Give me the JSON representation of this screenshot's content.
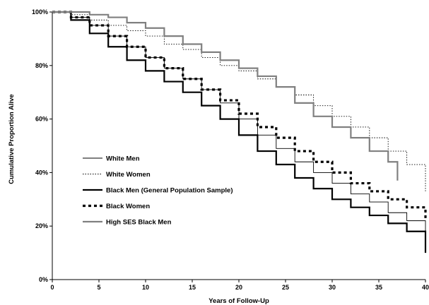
{
  "chart_data": {
    "type": "line",
    "title": "",
    "xlabel": "Years of Follow-Up",
    "ylabel": "Cumulative Proportion Alive",
    "xlim": [
      0,
      40
    ],
    "ylim": [
      0,
      100
    ],
    "x_ticks": [
      0,
      5,
      10,
      15,
      20,
      25,
      30,
      35,
      40
    ],
    "y_ticks": [
      0,
      20,
      40,
      60,
      80,
      100
    ],
    "x_tick_labels": [
      "0",
      "5",
      "10",
      "15",
      "20",
      "25",
      "30",
      "35",
      "40"
    ],
    "y_tick_labels": [
      "0%",
      "20%",
      "40%",
      "60%",
      "80%",
      "100%"
    ],
    "grid": false,
    "legend_position": "left-middle",
    "step": true,
    "series": [
      {
        "name": "White Men",
        "color": "#000000",
        "stroke": "thin-solid",
        "x": [
          0,
          2,
          4,
          6,
          8,
          10,
          12,
          14,
          16,
          18,
          20,
          22,
          24,
          26,
          28,
          30,
          32,
          34,
          36,
          38,
          40
        ],
        "y": [
          100,
          98,
          95,
          91,
          87,
          83,
          79,
          75,
          71,
          66,
          60,
          54,
          49,
          44,
          40,
          36,
          32,
          29,
          25,
          22,
          18
        ]
      },
      {
        "name": "White Women",
        "color": "#000000",
        "stroke": "dotted",
        "x": [
          0,
          2,
          4,
          6,
          8,
          10,
          12,
          14,
          16,
          18,
          20,
          22,
          24,
          26,
          28,
          30,
          32,
          34,
          36,
          38,
          40
        ],
        "y": [
          100,
          99,
          97,
          95,
          93,
          91,
          88,
          86,
          83,
          80,
          78,
          75,
          72,
          69,
          65,
          61,
          57,
          53,
          48,
          43,
          33
        ]
      },
      {
        "name": "Black Men (General Population Sample)",
        "color": "#000000",
        "stroke": "thick-solid",
        "x": [
          0,
          2,
          4,
          6,
          8,
          10,
          12,
          14,
          16,
          18,
          20,
          22,
          24,
          26,
          28,
          30,
          32,
          34,
          36,
          38,
          40
        ],
        "y": [
          100,
          97,
          92,
          87,
          82,
          78,
          74,
          70,
          65,
          60,
          54,
          48,
          43,
          38,
          34,
          30,
          27,
          24,
          21,
          18,
          10
        ]
      },
      {
        "name": "Black Women",
        "color": "#000000",
        "stroke": "thick-dashed",
        "x": [
          0,
          2,
          4,
          6,
          8,
          10,
          12,
          14,
          16,
          18,
          20,
          22,
          24,
          26,
          28,
          30,
          32,
          34,
          36,
          38,
          40
        ],
        "y": [
          100,
          98,
          95,
          91,
          87,
          83,
          79,
          75,
          71,
          67,
          62,
          57,
          53,
          48,
          44,
          40,
          36,
          33,
          30,
          27,
          23
        ]
      },
      {
        "name": "High SES Black Men",
        "color": "#808080",
        "stroke": "thick-solid",
        "x": [
          0,
          2,
          4,
          6,
          8,
          10,
          12,
          14,
          16,
          18,
          20,
          22,
          24,
          26,
          28,
          30,
          32,
          34,
          36,
          37
        ],
        "y": [
          100,
          100,
          99,
          98,
          96,
          94,
          91,
          88,
          85,
          82,
          79,
          76,
          72,
          66,
          61,
          57,
          53,
          48,
          44,
          37
        ]
      }
    ]
  }
}
